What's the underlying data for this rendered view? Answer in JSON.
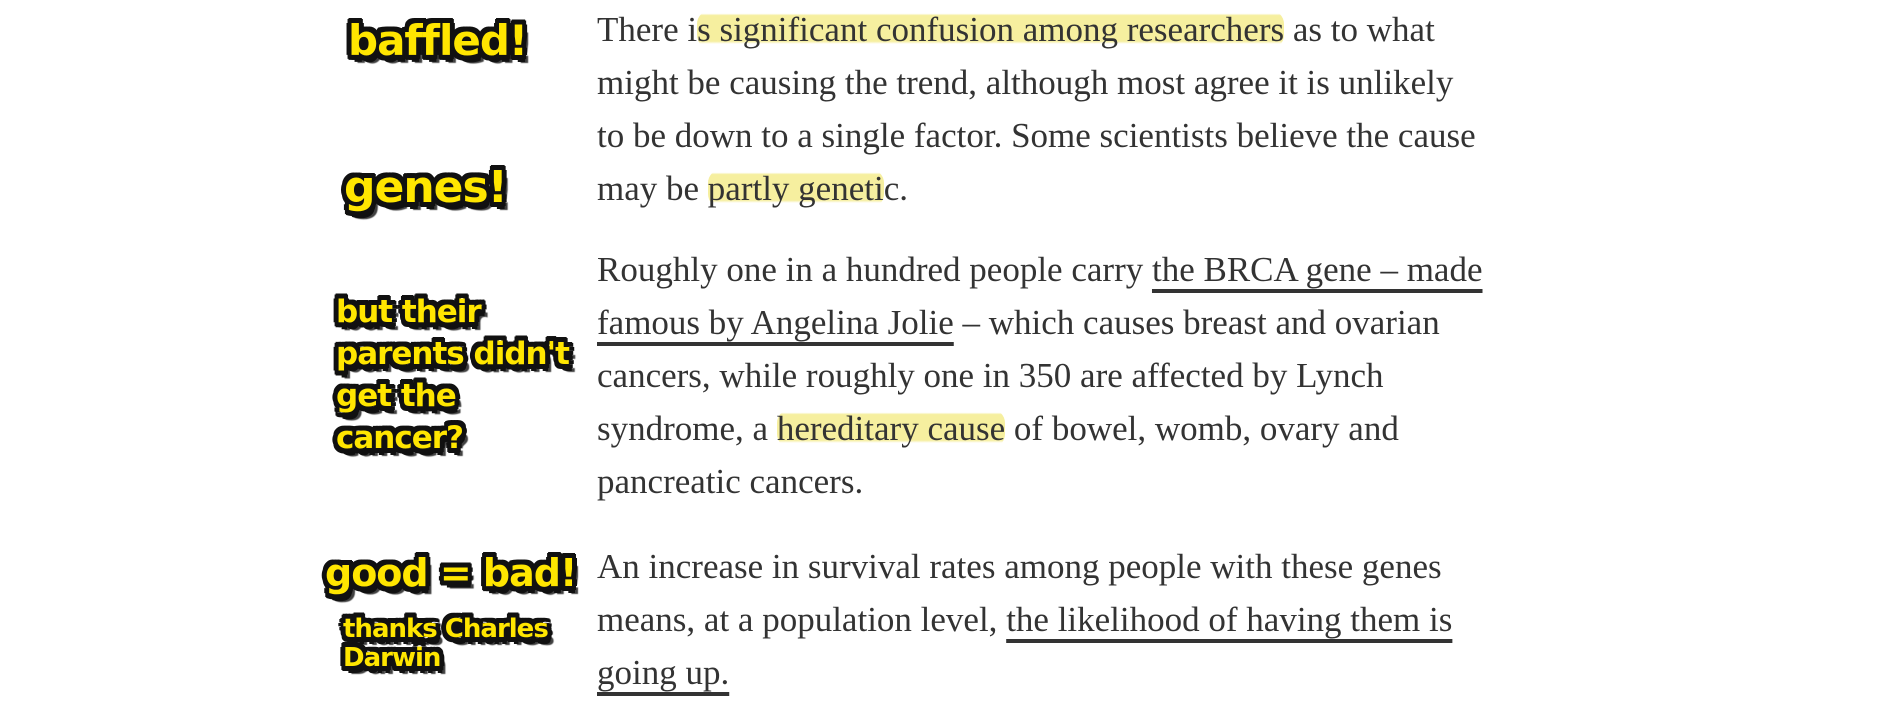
{
  "theme": {
    "background": "#ffffff",
    "text": "#333333",
    "highlight": "rgba(240,228,95,0.6)",
    "marker_fill": "#ffe600",
    "marker_outline": "#111111"
  },
  "annotations": {
    "baffled": {
      "text": "baffled!"
    },
    "genes": {
      "text": "genes!"
    },
    "parents": {
      "text": "but their\nparents didn't\nget the\ncancer?"
    },
    "good_bad": {
      "text": "good = bad!"
    },
    "thanks_darwin": {
      "text": "thanks Charles\nDarwin"
    }
  },
  "article": {
    "paragraphs": [
      {
        "segments": [
          {
            "t": "There i"
          },
          {
            "t": "s significant confusion among researchers",
            "m": "hl"
          },
          {
            "t": " as to what\nmight be causing the trend, although most agree it is unlikely\nto be down to a single factor. Some scientists believe the cause\nmay be "
          },
          {
            "t": "partly geneti",
            "m": "hl"
          },
          {
            "t": "c."
          }
        ]
      },
      {
        "segments": [
          {
            "t": "Roughly one in a hundred people carry "
          },
          {
            "t": "the BRCA gene – made\nfamous by Angelina Jolie",
            "m": "link"
          },
          {
            "t": " – which causes breast and ovarian\ncancers, while roughly one in 350 are affected by Lynch\nsyndrome, a "
          },
          {
            "t": "hereditary cause",
            "m": "hl"
          },
          {
            "t": " of bowel, womb, ovary and\npancreatic cancers."
          }
        ]
      },
      {
        "segments": [
          {
            "t": "An increase in survival rates among people with these genes\nmeans, at a population level, "
          },
          {
            "t": "the likelihood of having them is\ngoing up.",
            "m": "link"
          }
        ]
      }
    ]
  }
}
